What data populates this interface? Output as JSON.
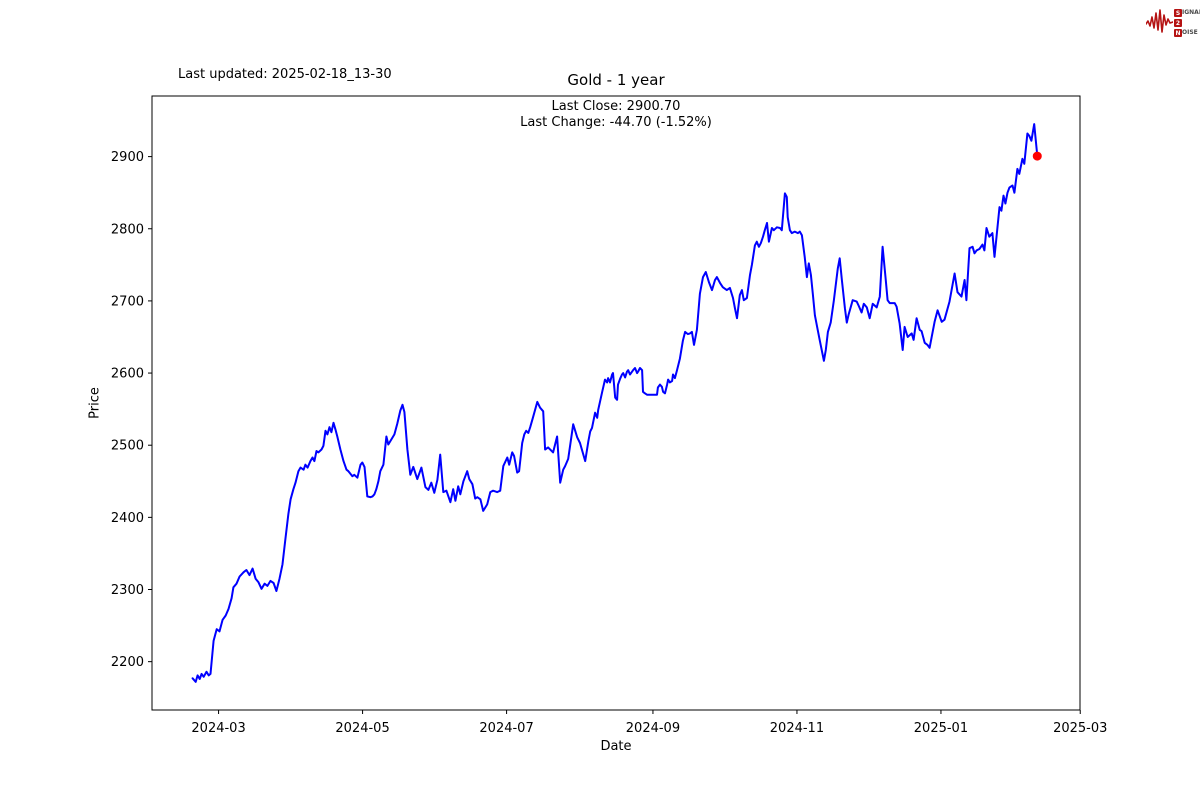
{
  "header": {
    "last_updated": "Last updated: 2025-02-18_13-30",
    "title": "Gold - 1 year",
    "last_close": "Last Close: 2900.70",
    "last_change": "Last Change: -44.70 (-1.52%)"
  },
  "logo": {
    "color": "#b51313",
    "rows": [
      {
        "boxed": "S",
        "rest": "IGNAL"
      },
      {
        "boxed": "2",
        "rest": ""
      },
      {
        "boxed": "N",
        "rest": "OISE"
      }
    ]
  },
  "chart_data": {
    "type": "line",
    "title": "Gold - 1 year",
    "xlabel": "Date",
    "ylabel": "Price",
    "line_color": "#0000ff",
    "marker_color": "#ff0000",
    "background": "#ffffff",
    "grid": false,
    "x_unit": "days from first point (first point = one year before 2025-02-18)",
    "x_domain_days": [
      -17.2,
      375.9
    ],
    "y_domain": [
      2133,
      2984
    ],
    "x_ticks": [
      {
        "day": 11,
        "label": "2024-03"
      },
      {
        "day": 72,
        "label": "2024-05"
      },
      {
        "day": 133,
        "label": "2024-07"
      },
      {
        "day": 195,
        "label": "2024-09"
      },
      {
        "day": 256,
        "label": "2024-11"
      },
      {
        "day": 317,
        "label": "2025-01"
      },
      {
        "day": 376,
        "label": "2025-03"
      }
    ],
    "y_ticks": [
      2200,
      2300,
      2400,
      2500,
      2600,
      2700,
      2800,
      2900
    ],
    "last_point": [
      357.8,
      2900.7
    ],
    "points": [
      [
        0,
        2177
      ],
      [
        1.3,
        2172
      ],
      [
        2.1,
        2181
      ],
      [
        3,
        2176
      ],
      [
        3.8,
        2183
      ],
      [
        4.7,
        2179
      ],
      [
        5.9,
        2186
      ],
      [
        6.8,
        2181
      ],
      [
        7.6,
        2183
      ],
      [
        8.9,
        2229
      ],
      [
        10.2,
        2245
      ],
      [
        11.4,
        2242
      ],
      [
        12.7,
        2258
      ],
      [
        14,
        2264
      ],
      [
        15.2,
        2273
      ],
      [
        16.5,
        2288
      ],
      [
        17.3,
        2303
      ],
      [
        18.6,
        2308
      ],
      [
        19.9,
        2318
      ],
      [
        21.6,
        2324
      ],
      [
        22.8,
        2327
      ],
      [
        24.1,
        2320
      ],
      [
        25.4,
        2329
      ],
      [
        26.7,
        2315
      ],
      [
        27.9,
        2310
      ],
      [
        29.2,
        2301
      ],
      [
        30.5,
        2308
      ],
      [
        31.7,
        2305
      ],
      [
        33,
        2312
      ],
      [
        34.3,
        2309
      ],
      [
        35.5,
        2298
      ],
      [
        36.8,
        2315
      ],
      [
        38.1,
        2335
      ],
      [
        39.3,
        2370
      ],
      [
        40.6,
        2405
      ],
      [
        41.5,
        2425
      ],
      [
        42.7,
        2439
      ],
      [
        43.6,
        2448
      ],
      [
        44.8,
        2464
      ],
      [
        45.7,
        2469
      ],
      [
        47,
        2466
      ],
      [
        47.8,
        2473
      ],
      [
        48.7,
        2469
      ],
      [
        49.9,
        2478
      ],
      [
        50.8,
        2483
      ],
      [
        51.6,
        2478
      ],
      [
        52.5,
        2492
      ],
      [
        53.3,
        2490
      ],
      [
        54.6,
        2494
      ],
      [
        55.4,
        2499
      ],
      [
        56.3,
        2520
      ],
      [
        57.1,
        2515
      ],
      [
        58,
        2525
      ],
      [
        58.8,
        2518
      ],
      [
        59.7,
        2531
      ],
      [
        60.5,
        2522
      ],
      [
        61.3,
        2512
      ],
      [
        62.6,
        2494
      ],
      [
        63.9,
        2478
      ],
      [
        65.2,
        2466
      ],
      [
        66,
        2464
      ],
      [
        67.7,
        2457
      ],
      [
        68.5,
        2459
      ],
      [
        69.8,
        2455
      ],
      [
        71.1,
        2473
      ],
      [
        71.9,
        2476
      ],
      [
        72.8,
        2470
      ],
      [
        74,
        2429
      ],
      [
        75.3,
        2428
      ],
      [
        76.2,
        2429
      ],
      [
        77,
        2432
      ],
      [
        77.8,
        2439
      ],
      [
        78.7,
        2450
      ],
      [
        79.5,
        2464
      ],
      [
        80.8,
        2473
      ],
      [
        82.1,
        2512
      ],
      [
        82.9,
        2501
      ],
      [
        84.2,
        2508
      ],
      [
        85.5,
        2515
      ],
      [
        86.7,
        2530
      ],
      [
        88,
        2548
      ],
      [
        88.9,
        2556
      ],
      [
        89.7,
        2546
      ],
      [
        91,
        2494
      ],
      [
        92.2,
        2459
      ],
      [
        93.5,
        2470
      ],
      [
        95.2,
        2453
      ],
      [
        96.9,
        2469
      ],
      [
        98.6,
        2442
      ],
      [
        99.9,
        2438
      ],
      [
        101.1,
        2448
      ],
      [
        102.4,
        2434
      ],
      [
        103.7,
        2452
      ],
      [
        104.9,
        2487
      ],
      [
        106.2,
        2435
      ],
      [
        107.5,
        2437
      ],
      [
        109.2,
        2421
      ],
      [
        110.4,
        2439
      ],
      [
        111.3,
        2423
      ],
      [
        112.5,
        2443
      ],
      [
        113.4,
        2432
      ],
      [
        114.7,
        2450
      ],
      [
        116.3,
        2464
      ],
      [
        117.2,
        2453
      ],
      [
        118.5,
        2446
      ],
      [
        119.7,
        2426
      ],
      [
        120.6,
        2428
      ],
      [
        121.9,
        2425
      ],
      [
        123.1,
        2409
      ],
      [
        124.8,
        2418
      ],
      [
        126.1,
        2435
      ],
      [
        127.3,
        2437
      ],
      [
        129,
        2435
      ],
      [
        130.3,
        2437
      ],
      [
        131.6,
        2471
      ],
      [
        133.3,
        2483
      ],
      [
        134.1,
        2473
      ],
      [
        135.4,
        2490
      ],
      [
        136.2,
        2485
      ],
      [
        137.5,
        2462
      ],
      [
        138.3,
        2464
      ],
      [
        139.6,
        2503
      ],
      [
        140.5,
        2515
      ],
      [
        141.3,
        2520
      ],
      [
        142.2,
        2517
      ],
      [
        143,
        2525
      ],
      [
        144.3,
        2540
      ],
      [
        146,
        2560
      ],
      [
        147.2,
        2552
      ],
      [
        148.5,
        2547
      ],
      [
        149.3,
        2494
      ],
      [
        150.6,
        2497
      ],
      [
        152.7,
        2490
      ],
      [
        154.4,
        2512
      ],
      [
        155.7,
        2448
      ],
      [
        157,
        2466
      ],
      [
        157.8,
        2471
      ],
      [
        159.1,
        2481
      ],
      [
        161.2,
        2529
      ],
      [
        162.9,
        2511
      ],
      [
        164.1,
        2503
      ],
      [
        166.3,
        2478
      ],
      [
        167.6,
        2505
      ],
      [
        168.4,
        2519
      ],
      [
        169.2,
        2524
      ],
      [
        170.5,
        2545
      ],
      [
        171.4,
        2538
      ],
      [
        171.8,
        2549
      ],
      [
        173.5,
        2574
      ],
      [
        174.7,
        2591
      ],
      [
        175.6,
        2587
      ],
      [
        176,
        2593
      ],
      [
        176.8,
        2587
      ],
      [
        177.7,
        2598
      ],
      [
        178.1,
        2600
      ],
      [
        179,
        2566
      ],
      [
        179.8,
        2563
      ],
      [
        180.2,
        2584
      ],
      [
        181.1,
        2592
      ],
      [
        181.9,
        2598
      ],
      [
        182.4,
        2600
      ],
      [
        183.2,
        2594
      ],
      [
        184,
        2602
      ],
      [
        184.5,
        2604
      ],
      [
        185.3,
        2598
      ],
      [
        186.6,
        2604
      ],
      [
        187.4,
        2607
      ],
      [
        188.3,
        2600
      ],
      [
        188.7,
        2602
      ],
      [
        189.5,
        2607
      ],
      [
        190.4,
        2604
      ],
      [
        190.8,
        2574
      ],
      [
        191.6,
        2572
      ],
      [
        192.5,
        2570
      ],
      [
        193.8,
        2570
      ],
      [
        195,
        2570
      ],
      [
        196.7,
        2570
      ],
      [
        197.1,
        2580
      ],
      [
        198,
        2584
      ],
      [
        198.8,
        2581
      ],
      [
        199.3,
        2574
      ],
      [
        200.1,
        2572
      ],
      [
        201,
        2584
      ],
      [
        201.4,
        2591
      ],
      [
        202.2,
        2587
      ],
      [
        203.1,
        2589
      ],
      [
        203.5,
        2598
      ],
      [
        204.3,
        2593
      ],
      [
        205.2,
        2604
      ],
      [
        206.4,
        2620
      ],
      [
        207.7,
        2645
      ],
      [
        208.6,
        2657
      ],
      [
        209.8,
        2654
      ],
      [
        210.7,
        2655
      ],
      [
        211.5,
        2657
      ],
      [
        212.4,
        2639
      ],
      [
        213.6,
        2660
      ],
      [
        214.9,
        2710
      ],
      [
        216.2,
        2733
      ],
      [
        217.4,
        2740
      ],
      [
        218.7,
        2726
      ],
      [
        220,
        2715
      ],
      [
        221.3,
        2729
      ],
      [
        222.1,
        2733
      ],
      [
        223.4,
        2725
      ],
      [
        224.6,
        2719
      ],
      [
        226.3,
        2715
      ],
      [
        227.6,
        2718
      ],
      [
        228.9,
        2704
      ],
      [
        229.7,
        2690
      ],
      [
        230.6,
        2676
      ],
      [
        231.8,
        2708
      ],
      [
        232.7,
        2715
      ],
      [
        233.5,
        2701
      ],
      [
        234.8,
        2704
      ],
      [
        236.1,
        2736
      ],
      [
        236.9,
        2750
      ],
      [
        238.2,
        2777
      ],
      [
        239,
        2782
      ],
      [
        239.9,
        2775
      ],
      [
        240.7,
        2780
      ],
      [
        241.6,
        2789
      ],
      [
        242.4,
        2798
      ],
      [
        243.3,
        2808
      ],
      [
        244.1,
        2782
      ],
      [
        245.4,
        2801
      ],
      [
        246.2,
        2798
      ],
      [
        247.5,
        2802
      ],
      [
        248.8,
        2801
      ],
      [
        249.6,
        2798
      ],
      [
        250.9,
        2849
      ],
      [
        251.7,
        2844
      ],
      [
        252.1,
        2816
      ],
      [
        253,
        2798
      ],
      [
        253.8,
        2794
      ],
      [
        255.1,
        2796
      ],
      [
        256.4,
        2794
      ],
      [
        257.2,
        2796
      ],
      [
        258.1,
        2791
      ],
      [
        259.3,
        2761
      ],
      [
        260.2,
        2733
      ],
      [
        261,
        2752
      ],
      [
        261.9,
        2736
      ],
      [
        262.7,
        2710
      ],
      [
        263.6,
        2680
      ],
      [
        264.8,
        2660
      ],
      [
        265.7,
        2645
      ],
      [
        267.4,
        2617
      ],
      [
        268.2,
        2632
      ],
      [
        269.1,
        2657
      ],
      [
        270.3,
        2670
      ],
      [
        271.6,
        2700
      ],
      [
        273.3,
        2745
      ],
      [
        274.1,
        2759
      ],
      [
        275,
        2730
      ],
      [
        276.3,
        2690
      ],
      [
        277.1,
        2670
      ],
      [
        277.9,
        2681
      ],
      [
        279.6,
        2701
      ],
      [
        281.3,
        2699
      ],
      [
        282.2,
        2693
      ],
      [
        283.4,
        2684
      ],
      [
        284.3,
        2696
      ],
      [
        285.6,
        2691
      ],
      [
        286.8,
        2676
      ],
      [
        288.1,
        2696
      ],
      [
        289.8,
        2691
      ],
      [
        291.1,
        2706
      ],
      [
        292.3,
        2775
      ],
      [
        293.6,
        2730
      ],
      [
        294.4,
        2701
      ],
      [
        295.3,
        2697
      ],
      [
        297.4,
        2697
      ],
      [
        298.2,
        2692
      ],
      [
        299.5,
        2669
      ],
      [
        300.8,
        2632
      ],
      [
        301.6,
        2664
      ],
      [
        302.9,
        2650
      ],
      [
        304.6,
        2655
      ],
      [
        305.4,
        2646
      ],
      [
        306.7,
        2676
      ],
      [
        308,
        2660
      ],
      [
        308.8,
        2658
      ],
      [
        310.1,
        2642
      ],
      [
        311.3,
        2639
      ],
      [
        312.2,
        2635
      ],
      [
        314.3,
        2671
      ],
      [
        315.6,
        2687
      ],
      [
        317.3,
        2671
      ],
      [
        318.5,
        2674
      ],
      [
        320.6,
        2699
      ],
      [
        322.8,
        2738
      ],
      [
        324,
        2712
      ],
      [
        325.7,
        2706
      ],
      [
        327,
        2729
      ],
      [
        327.8,
        2701
      ],
      [
        329.1,
        2773
      ],
      [
        330.4,
        2775
      ],
      [
        331.2,
        2766
      ],
      [
        332.1,
        2770
      ],
      [
        333.3,
        2772
      ],
      [
        334.6,
        2778
      ],
      [
        335.4,
        2770
      ],
      [
        336.3,
        2801
      ],
      [
        337.5,
        2789
      ],
      [
        338.8,
        2794
      ],
      [
        339.7,
        2761
      ],
      [
        341.8,
        2830
      ],
      [
        342.6,
        2825
      ],
      [
        343.5,
        2846
      ],
      [
        344.3,
        2835
      ],
      [
        345.2,
        2850
      ],
      [
        346,
        2857
      ],
      [
        347.3,
        2860
      ],
      [
        348.1,
        2850
      ],
      [
        349.4,
        2883
      ],
      [
        350.2,
        2876
      ],
      [
        351.5,
        2897
      ],
      [
        352.3,
        2890
      ],
      [
        353.6,
        2932
      ],
      [
        354.4,
        2929
      ],
      [
        355.3,
        2922
      ],
      [
        356.5,
        2945
      ],
      [
        357.8,
        2901
      ]
    ]
  }
}
